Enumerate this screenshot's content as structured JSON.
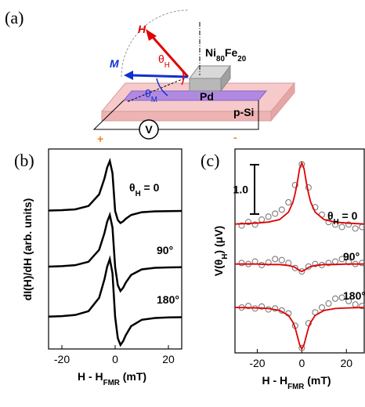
{
  "diagram": {
    "panel": "(a)",
    "H": "H",
    "M": "M",
    "theta_H": [
      "θ",
      "H"
    ],
    "theta_M": [
      "θ",
      "M"
    ],
    "nife": [
      "Ni",
      "80",
      "Fe",
      "20"
    ],
    "pd": "Pd",
    "psi": "p-Si",
    "v": "V",
    "plus": "+",
    "minus": "-"
  },
  "chart_data": [
    {
      "type": "line",
      "panel": "(b)",
      "x_label": [
        "H - H",
        "FMR",
        " (mT)"
      ],
      "y_label": "dI(H)/dH (arb. units)",
      "xlim": [
        -25,
        25
      ],
      "xticks": [
        -20,
        0,
        20
      ],
      "ylim": [
        0,
        10
      ],
      "x": [
        -25,
        -20,
        -15,
        -10,
        -6,
        -4,
        -3,
        -2,
        -1,
        0,
        1,
        2,
        3,
        4,
        6,
        10,
        15,
        20,
        25
      ],
      "series": [
        {
          "label": [
            "θ",
            "H",
            " = 0"
          ],
          "color": "#000000",
          "values": [
            6.92,
            6.94,
            6.98,
            7.15,
            7.73,
            8.53,
            9.07,
            9.4,
            8.79,
            6.9,
            6.45,
            6.3,
            6.38,
            6.51,
            6.7,
            6.84,
            6.88,
            6.89,
            6.9
          ]
        },
        {
          "label": [
            "90°"
          ],
          "color": "#000000",
          "values": [
            4.12,
            4.14,
            4.19,
            4.36,
            4.96,
            5.8,
            6.36,
            6.7,
            6.07,
            4.1,
            3.19,
            2.9,
            3.06,
            3.32,
            3.7,
            3.98,
            4.06,
            4.08,
            4.09
          ]
        },
        {
          "label": [
            "180°"
          ],
          "color": "#000000",
          "values": [
            1.62,
            1.64,
            1.7,
            1.89,
            2.56,
            3.49,
            4.11,
            4.5,
            3.79,
            1.6,
            0.54,
            0.2,
            0.39,
            0.69,
            1.14,
            1.46,
            1.55,
            1.58,
            1.59
          ]
        }
      ]
    },
    {
      "type": "scatter",
      "panel": "(c)",
      "x_label": [
        "H - H",
        "FMR",
        " (mT)"
      ],
      "y_label": [
        "V(θ",
        "H",
        ") (μV)"
      ],
      "xlim": [
        -30,
        28
      ],
      "xticks": [
        -20,
        0,
        20
      ],
      "ylim": [
        -0.1,
        4.03
      ],
      "scale_bar": {
        "value": 1,
        "label": "1.0"
      },
      "series": [
        {
          "style": "marker",
          "color": "#707070",
          "x": [
            -27,
            -24,
            -21,
            -18,
            -15,
            -12,
            -9,
            -6,
            -3,
            0,
            3,
            6,
            9,
            12,
            15,
            18,
            21,
            24,
            27
          ],
          "values": [
            2.48,
            2.55,
            2.5,
            2.6,
            2.66,
            2.72,
            2.8,
            2.95,
            3.3,
            3.72,
            3.25,
            2.85,
            2.7,
            2.55,
            2.5,
            2.45,
            2.5,
            2.42,
            2.45
          ]
        },
        {
          "style": "marker",
          "color": "#707070",
          "x": [
            -27,
            -24,
            -21,
            -18,
            -15,
            -12,
            -9,
            -6,
            -3,
            0,
            3,
            6,
            9,
            12,
            15,
            18,
            21,
            24,
            27
          ],
          "values": [
            1.72,
            1.7,
            1.75,
            1.68,
            1.73,
            1.8,
            1.78,
            1.72,
            1.62,
            1.55,
            1.65,
            1.7,
            1.68,
            1.72,
            1.75,
            1.8,
            1.74,
            1.7,
            1.72
          ]
        },
        {
          "style": "marker",
          "color": "#707070",
          "x": [
            -27,
            -24,
            -21,
            -18,
            -15,
            -12,
            -9,
            -6,
            -3,
            0,
            3,
            6,
            9,
            12,
            15,
            18,
            21,
            24,
            27
          ],
          "values": [
            0.82,
            0.85,
            0.8,
            0.84,
            0.78,
            0.8,
            0.76,
            0.7,
            0.45,
            0.0,
            0.5,
            0.72,
            0.82,
            0.9,
            1.0,
            1.02,
            0.95,
            0.88,
            0.85
          ]
        },
        {
          "style": "line",
          "label": [
            "θ",
            "H",
            " = 0"
          ],
          "color": "#e00000",
          "x": [
            -30,
            -20,
            -15,
            -10,
            -6,
            -4,
            -3,
            -2,
            -1,
            0,
            1,
            2,
            3,
            4,
            6,
            10,
            15,
            20,
            28
          ],
          "values": [
            2.51,
            2.53,
            2.55,
            2.6,
            2.75,
            2.95,
            3.13,
            3.36,
            3.63,
            3.75,
            3.63,
            3.36,
            3.13,
            2.95,
            2.75,
            2.6,
            2.55,
            2.53,
            2.51
          ]
        },
        {
          "style": "line",
          "label": [
            "90°"
          ],
          "color": "#e00000",
          "x": [
            -30,
            -20,
            -15,
            -10,
            -6,
            -4,
            -3,
            -2,
            -1,
            0,
            1,
            2,
            3,
            4,
            6,
            10,
            15,
            20,
            28
          ],
          "values": [
            1.7,
            1.7,
            1.69,
            1.69,
            1.67,
            1.65,
            1.63,
            1.6,
            1.57,
            1.55,
            1.57,
            1.6,
            1.63,
            1.65,
            1.67,
            1.69,
            1.69,
            1.7,
            1.7
          ]
        },
        {
          "style": "line",
          "label": [
            "180°"
          ],
          "color": "#e00000",
          "x": [
            -30,
            -20,
            -15,
            -10,
            -6,
            -4,
            -3,
            -2,
            -1,
            0,
            1,
            2,
            3,
            4,
            6,
            10,
            15,
            20,
            28
          ],
          "values": [
            0.82,
            0.81,
            0.8,
            0.76,
            0.66,
            0.52,
            0.41,
            0.24,
            0.07,
            -0.02,
            0.07,
            0.24,
            0.41,
            0.52,
            0.66,
            0.76,
            0.8,
            0.81,
            0.82
          ]
        }
      ]
    }
  ]
}
